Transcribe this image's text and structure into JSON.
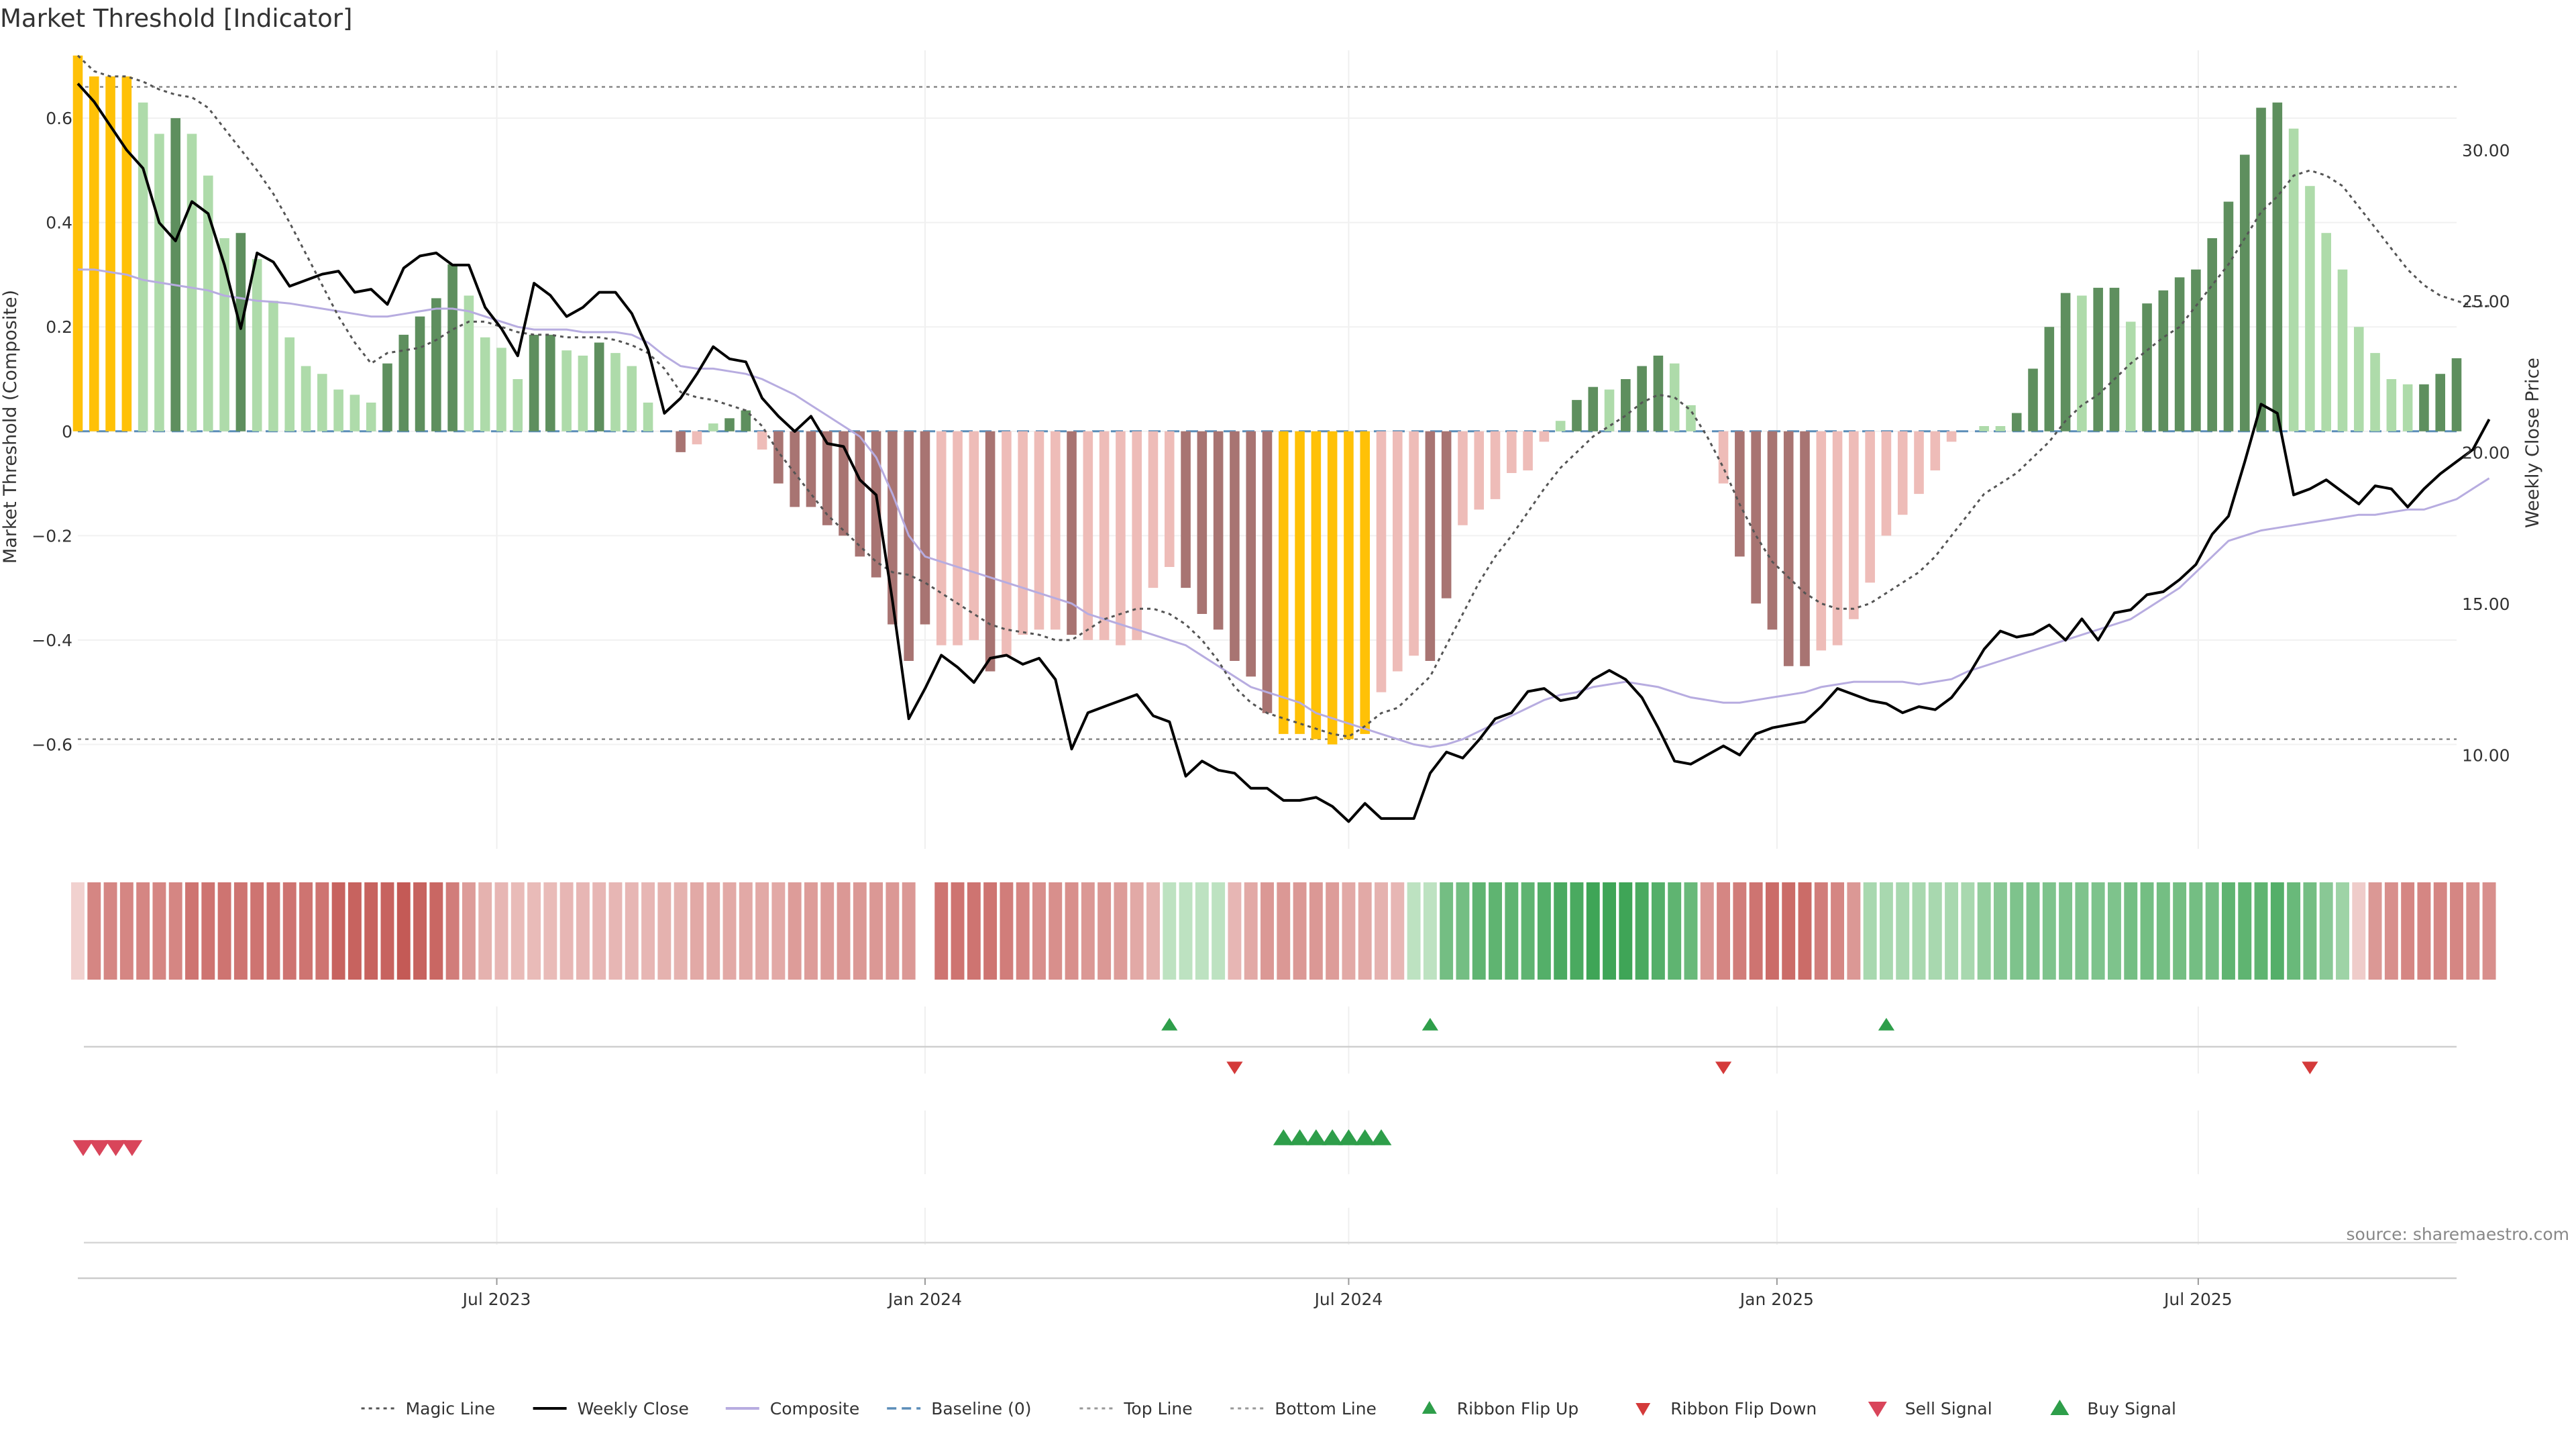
{
  "title": "Market Threshold [Indicator]",
  "source": "source: sharemaestro.com",
  "axes": {
    "y_left_label": "Market Threshold (Composite)",
    "y_right_label": "Weekly Close Price",
    "y_left_ticks": [
      "0.6",
      "0.4",
      "0.2",
      "0",
      "−0.2",
      "−0.4",
      "−0.6"
    ],
    "y_right_ticks": [
      "30.00",
      "25.00",
      "20.00",
      "15.00",
      "10.00"
    ],
    "x_ticks": [
      "Jul 2023",
      "Jan 2024",
      "Jul 2024",
      "Jan 2025",
      "Jul 2025"
    ]
  },
  "legend": [
    {
      "label": "Magic Line",
      "kind": "dotted-dark"
    },
    {
      "label": "Weekly Close",
      "kind": "solid-black"
    },
    {
      "label": "Composite",
      "kind": "solid-lavender"
    },
    {
      "label": "Baseline (0)",
      "kind": "dashed-blue"
    },
    {
      "label": "Top Line",
      "kind": "dotted-grey"
    },
    {
      "label": "Bottom Line",
      "kind": "dotted-grey"
    },
    {
      "label": "Ribbon Flip Up",
      "kind": "tri-up-small"
    },
    {
      "label": "Ribbon Flip Down",
      "kind": "tri-down-small"
    },
    {
      "label": "Sell Signal",
      "kind": "tri-down-large"
    },
    {
      "label": "Buy Signal",
      "kind": "tri-up-large"
    }
  ],
  "colors": {
    "extreme": "#FFC107",
    "pos_strong": "#5E8F5E",
    "pos_light": "#AEDBAA",
    "neg_strong": "#A87472",
    "neg_light": "#EEBCB8",
    "weekly_close": "#000000",
    "composite": "#B7ACE0",
    "magic": "#555555",
    "baseline": "#5B8DB8",
    "flip_up": "#2E9E4A",
    "flip_down": "#D43A3A",
    "sell": "#D9455A",
    "buy": "#2E9E4A"
  },
  "chart_data": {
    "type": "bar",
    "start_date": "2023-01-02",
    "interval": "weekly",
    "y_left_range": [
      -0.8,
      0.73
    ],
    "y_right_range": [
      6.9,
      33.3
    ],
    "top_line": 0.66,
    "bottom_line": -0.59,
    "baseline": 0,
    "bars": [
      [
        0.72,
        "E"
      ],
      [
        0.68,
        "E"
      ],
      [
        0.68,
        "E"
      ],
      [
        0.68,
        "E"
      ],
      [
        0.63,
        "L"
      ],
      [
        0.57,
        "L"
      ],
      [
        0.6,
        "S"
      ],
      [
        0.57,
        "L"
      ],
      [
        0.49,
        "L"
      ],
      [
        0.37,
        "L"
      ],
      [
        0.38,
        "S"
      ],
      [
        0.33,
        "L"
      ],
      [
        0.25,
        "L"
      ],
      [
        0.18,
        "L"
      ],
      [
        0.125,
        "L"
      ],
      [
        0.11,
        "L"
      ],
      [
        0.08,
        "L"
      ],
      [
        0.07,
        "L"
      ],
      [
        0.055,
        "L"
      ],
      [
        0.13,
        "S"
      ],
      [
        0.185,
        "S"
      ],
      [
        0.22,
        "S"
      ],
      [
        0.255,
        "S"
      ],
      [
        0.32,
        "S"
      ],
      [
        0.26,
        "L"
      ],
      [
        0.18,
        "L"
      ],
      [
        0.16,
        "L"
      ],
      [
        0.1,
        "L"
      ],
      [
        0.185,
        "S"
      ],
      [
        0.185,
        "S"
      ],
      [
        0.155,
        "L"
      ],
      [
        0.145,
        "L"
      ],
      [
        0.17,
        "S"
      ],
      [
        0.15,
        "L"
      ],
      [
        0.125,
        "L"
      ],
      [
        0.055,
        "L"
      ],
      [
        0,
        "L"
      ],
      [
        -0.04,
        "S"
      ],
      [
        -0.025,
        "L"
      ],
      [
        0.015,
        "L"
      ],
      [
        0.025,
        "S"
      ],
      [
        0.04,
        "S"
      ],
      [
        -0.035,
        "L"
      ],
      [
        -0.1,
        "S"
      ],
      [
        -0.145,
        "S"
      ],
      [
        -0.145,
        "S"
      ],
      [
        -0.18,
        "S"
      ],
      [
        -0.2,
        "S"
      ],
      [
        -0.24,
        "S"
      ],
      [
        -0.28,
        "S"
      ],
      [
        -0.37,
        "S"
      ],
      [
        -0.44,
        "S"
      ],
      [
        -0.37,
        "S"
      ],
      [
        -0.41,
        "L"
      ],
      [
        -0.41,
        "L"
      ],
      [
        -0.4,
        "L"
      ],
      [
        -0.46,
        "S"
      ],
      [
        -0.43,
        "L"
      ],
      [
        -0.39,
        "L"
      ],
      [
        -0.38,
        "L"
      ],
      [
        -0.38,
        "L"
      ],
      [
        -0.39,
        "S"
      ],
      [
        -0.4,
        "L"
      ],
      [
        -0.4,
        "L"
      ],
      [
        -0.41,
        "L"
      ],
      [
        -0.4,
        "L"
      ],
      [
        -0.3,
        "L"
      ],
      [
        -0.26,
        "L"
      ],
      [
        -0.3,
        "S"
      ],
      [
        -0.35,
        "S"
      ],
      [
        -0.38,
        "S"
      ],
      [
        -0.44,
        "S"
      ],
      [
        -0.47,
        "S"
      ],
      [
        -0.54,
        "S"
      ],
      [
        -0.58,
        "E"
      ],
      [
        -0.58,
        "E"
      ],
      [
        -0.59,
        "E"
      ],
      [
        -0.6,
        "E"
      ],
      [
        -0.59,
        "E"
      ],
      [
        -0.58,
        "E"
      ],
      [
        -0.5,
        "L"
      ],
      [
        -0.46,
        "L"
      ],
      [
        -0.43,
        "L"
      ],
      [
        -0.44,
        "S"
      ],
      [
        -0.32,
        "S"
      ],
      [
        -0.18,
        "L"
      ],
      [
        -0.15,
        "L"
      ],
      [
        -0.13,
        "L"
      ],
      [
        -0.08,
        "L"
      ],
      [
        -0.075,
        "L"
      ],
      [
        -0.02,
        "L"
      ],
      [
        0.02,
        "L"
      ],
      [
        0.06,
        "S"
      ],
      [
        0.085,
        "S"
      ],
      [
        0.08,
        "L"
      ],
      [
        0.1,
        "S"
      ],
      [
        0.125,
        "S"
      ],
      [
        0.145,
        "S"
      ],
      [
        0.13,
        "L"
      ],
      [
        0.05,
        "L"
      ],
      [
        0,
        "L"
      ],
      [
        -0.1,
        "L"
      ],
      [
        -0.24,
        "S"
      ],
      [
        -0.33,
        "S"
      ],
      [
        -0.38,
        "S"
      ],
      [
        -0.45,
        "S"
      ],
      [
        -0.45,
        "S"
      ],
      [
        -0.42,
        "L"
      ],
      [
        -0.41,
        "L"
      ],
      [
        -0.36,
        "L"
      ],
      [
        -0.29,
        "L"
      ],
      [
        -0.2,
        "L"
      ],
      [
        -0.16,
        "L"
      ],
      [
        -0.12,
        "L"
      ],
      [
        -0.075,
        "L"
      ],
      [
        -0.02,
        "L"
      ],
      [
        0,
        "L"
      ],
      [
        0.01,
        "L"
      ],
      [
        0.01,
        "L"
      ],
      [
        0.035,
        "S"
      ],
      [
        0.12,
        "S"
      ],
      [
        0.2,
        "S"
      ],
      [
        0.265,
        "S"
      ],
      [
        0.26,
        "L"
      ],
      [
        0.275,
        "S"
      ],
      [
        0.275,
        "S"
      ],
      [
        0.21,
        "L"
      ],
      [
        0.245,
        "S"
      ],
      [
        0.27,
        "S"
      ],
      [
        0.295,
        "S"
      ],
      [
        0.31,
        "S"
      ],
      [
        0.37,
        "S"
      ],
      [
        0.44,
        "S"
      ],
      [
        0.53,
        "S"
      ],
      [
        0.62,
        "S"
      ],
      [
        0.63,
        "S"
      ],
      [
        0.58,
        "L"
      ],
      [
        0.47,
        "L"
      ],
      [
        0.38,
        "L"
      ],
      [
        0.31,
        "L"
      ],
      [
        0.2,
        "L"
      ],
      [
        0.15,
        "L"
      ],
      [
        0.1,
        "L"
      ],
      [
        0.09,
        "L"
      ],
      [
        0.09,
        "S"
      ],
      [
        0.11,
        "S"
      ],
      [
        0.14,
        "S"
      ]
    ],
    "weekly_close": [
      32.2,
      31.6,
      30.8,
      30.0,
      29.4,
      27.6,
      27.0,
      28.3,
      27.9,
      26.2,
      24.1,
      26.6,
      26.3,
      25.5,
      25.7,
      25.9,
      26.0,
      25.3,
      25.4,
      24.9,
      26.1,
      26.5,
      26.6,
      26.2,
      26.2,
      24.8,
      24.1,
      23.2,
      25.6,
      25.2,
      24.5,
      24.8,
      25.3,
      25.3,
      24.6,
      23.4,
      21.3,
      21.8,
      22.6,
      23.5,
      23.1,
      23.0,
      21.8,
      21.2,
      20.7,
      21.2,
      20.3,
      20.2,
      19.1,
      18.6,
      15.1,
      11.2,
      12.2,
      13.3,
      12.9,
      12.4,
      13.2,
      13.3,
      13.0,
      13.2,
      12.5,
      10.2,
      11.4,
      11.6,
      11.8,
      12.0,
      11.3,
      11.1,
      9.3,
      9.8,
      9.5,
      9.4,
      8.9,
      8.9,
      8.5,
      8.5,
      8.6,
      8.3,
      7.8,
      8.4,
      7.9,
      7.9,
      7.9,
      9.4,
      10.1,
      9.9,
      10.5,
      11.2,
      11.4,
      12.1,
      12.2,
      11.8,
      11.9,
      12.5,
      12.8,
      12.5,
      11.9,
      10.9,
      9.8,
      9.7,
      10.0,
      10.3,
      10.0,
      10.7,
      10.9,
      11.0,
      11.1,
      11.6,
      12.2,
      12.0,
      11.8,
      11.7,
      11.4,
      11.6,
      11.5,
      11.9,
      12.6,
      13.5,
      14.1,
      13.9,
      14.0,
      14.3,
      13.8,
      14.5,
      13.8,
      14.7,
      14.8,
      15.3,
      15.4,
      15.8,
      16.3,
      17.3,
      17.9,
      19.7,
      21.6,
      21.3,
      18.6,
      18.8,
      19.1,
      18.7,
      18.3,
      18.9,
      18.8,
      18.2,
      18.8,
      19.3,
      19.7,
      20.1,
      21.1
    ],
    "composite": [
      0.31,
      0.31,
      0.305,
      0.3,
      0.29,
      0.285,
      0.28,
      0.275,
      0.27,
      0.26,
      0.255,
      0.25,
      0.248,
      0.245,
      0.24,
      0.235,
      0.23,
      0.225,
      0.22,
      0.22,
      0.225,
      0.23,
      0.235,
      0.235,
      0.23,
      0.22,
      0.21,
      0.2,
      0.195,
      0.195,
      0.195,
      0.19,
      0.19,
      0.19,
      0.185,
      0.17,
      0.145,
      0.125,
      0.12,
      0.12,
      0.115,
      0.11,
      0.1,
      0.085,
      0.07,
      0.05,
      0.03,
      0.01,
      -0.01,
      -0.05,
      -0.12,
      -0.2,
      -0.24,
      -0.25,
      -0.26,
      -0.27,
      -0.28,
      -0.29,
      -0.3,
      -0.31,
      -0.32,
      -0.33,
      -0.35,
      -0.36,
      -0.37,
      -0.38,
      -0.39,
      -0.4,
      -0.41,
      -0.43,
      -0.45,
      -0.47,
      -0.49,
      -0.5,
      -0.51,
      -0.52,
      -0.54,
      -0.55,
      -0.56,
      -0.57,
      -0.58,
      -0.59,
      -0.6,
      -0.605,
      -0.6,
      -0.59,
      -0.575,
      -0.56,
      -0.545,
      -0.53,
      -0.515,
      -0.505,
      -0.5,
      -0.49,
      -0.485,
      -0.48,
      -0.485,
      -0.49,
      -0.5,
      -0.51,
      -0.515,
      -0.52,
      -0.52,
      -0.515,
      -0.51,
      -0.505,
      -0.5,
      -0.49,
      -0.485,
      -0.48,
      -0.48,
      -0.48,
      -0.48,
      -0.485,
      -0.48,
      -0.475,
      -0.46,
      -0.45,
      -0.44,
      -0.43,
      -0.42,
      -0.41,
      -0.4,
      -0.39,
      -0.38,
      -0.37,
      -0.36,
      -0.34,
      -0.32,
      -0.3,
      -0.27,
      -0.24,
      -0.21,
      -0.2,
      -0.19,
      -0.185,
      -0.18,
      -0.175,
      -0.17,
      -0.165,
      -0.16,
      -0.16,
      -0.155,
      -0.15,
      -0.15,
      -0.14,
      -0.13,
      -0.11,
      -0.09
    ],
    "magic_line": [
      0.72,
      0.69,
      0.68,
      0.68,
      0.67,
      0.655,
      0.645,
      0.64,
      0.62,
      0.58,
      0.54,
      0.5,
      0.455,
      0.4,
      0.34,
      0.28,
      0.22,
      0.17,
      0.13,
      0.15,
      0.155,
      0.16,
      0.175,
      0.195,
      0.21,
      0.21,
      0.2,
      0.19,
      0.185,
      0.185,
      0.18,
      0.18,
      0.18,
      0.175,
      0.165,
      0.15,
      0.12,
      0.075,
      0.065,
      0.06,
      0.05,
      0.04,
      0.01,
      -0.04,
      -0.08,
      -0.12,
      -0.16,
      -0.19,
      -0.22,
      -0.25,
      -0.27,
      -0.275,
      -0.29,
      -0.31,
      -0.33,
      -0.35,
      -0.37,
      -0.38,
      -0.385,
      -0.39,
      -0.4,
      -0.4,
      -0.38,
      -0.36,
      -0.35,
      -0.34,
      -0.34,
      -0.35,
      -0.37,
      -0.4,
      -0.44,
      -0.49,
      -0.52,
      -0.54,
      -0.55,
      -0.56,
      -0.57,
      -0.58,
      -0.585,
      -0.565,
      -0.54,
      -0.53,
      -0.5,
      -0.47,
      -0.41,
      -0.35,
      -0.29,
      -0.24,
      -0.2,
      -0.155,
      -0.11,
      -0.07,
      -0.04,
      -0.01,
      0.01,
      0.03,
      0.055,
      0.07,
      0.065,
      0.04,
      -0.01,
      -0.07,
      -0.14,
      -0.2,
      -0.25,
      -0.28,
      -0.31,
      -0.33,
      -0.34,
      -0.34,
      -0.33,
      -0.31,
      -0.29,
      -0.27,
      -0.24,
      -0.2,
      -0.16,
      -0.12,
      -0.1,
      -0.08,
      -0.05,
      -0.02,
      0.02,
      0.05,
      0.07,
      0.1,
      0.13,
      0.155,
      0.18,
      0.2,
      0.24,
      0.28,
      0.32,
      0.37,
      0.42,
      0.45,
      0.49,
      0.5,
      0.49,
      0.47,
      0.43,
      0.39,
      0.35,
      0.31,
      0.28,
      0.26,
      0.25,
      0.24,
      0.24
    ],
    "ribbon": [
      -0.03,
      -0.2,
      -0.2,
      -0.2,
      -0.2,
      -0.2,
      -0.2,
      -0.24,
      -0.24,
      -0.24,
      -0.24,
      -0.24,
      -0.24,
      -0.24,
      -0.24,
      -0.24,
      -0.28,
      -0.28,
      -0.28,
      -0.28,
      -0.3,
      -0.28,
      -0.27,
      -0.22,
      -0.15,
      -0.1,
      -0.09,
      -0.08,
      -0.08,
      -0.08,
      -0.09,
      -0.09,
      -0.09,
      -0.09,
      -0.09,
      -0.09,
      -0.1,
      -0.1,
      -0.12,
      -0.12,
      -0.12,
      -0.12,
      -0.12,
      -0.12,
      -0.15,
      -0.15,
      -0.15,
      -0.16,
      -0.16,
      -0.16,
      -0.16,
      -0.16,
      null,
      -0.24,
      -0.24,
      -0.24,
      -0.24,
      -0.22,
      -0.2,
      -0.18,
      -0.18,
      -0.18,
      -0.16,
      -0.16,
      -0.15,
      -0.12,
      -0.1,
      0.06,
      0.06,
      0.06,
      0.06,
      -0.09,
      -0.12,
      -0.16,
      -0.16,
      -0.16,
      -0.16,
      -0.15,
      -0.12,
      -0.12,
      -0.1,
      -0.09,
      0.06,
      0.06,
      0.2,
      0.2,
      0.24,
      0.24,
      0.24,
      0.24,
      0.26,
      0.28,
      0.28,
      0.3,
      0.3,
      0.3,
      0.28,
      0.26,
      0.24,
      0.22,
      -0.16,
      -0.2,
      -0.22,
      -0.24,
      -0.26,
      -0.26,
      -0.26,
      -0.22,
      -0.2,
      -0.16,
      0.1,
      0.1,
      0.1,
      0.1,
      0.1,
      0.1,
      0.1,
      0.14,
      0.16,
      0.18,
      0.18,
      0.18,
      0.18,
      0.18,
      0.18,
      0.18,
      0.2,
      0.2,
      0.2,
      0.2,
      0.2,
      0.2,
      0.24,
      0.24,
      0.24,
      0.26,
      0.22,
      0.2,
      0.16,
      0.12,
      -0.04,
      -0.16,
      -0.18,
      -0.2,
      -0.2,
      -0.2,
      -0.2,
      -0.18,
      -0.18
    ],
    "ribbon_flip_up_weeks": [
      67,
      83,
      111
    ],
    "ribbon_flip_down_weeks": [
      71,
      101,
      137
    ],
    "sell_signal_weeks": [
      0,
      1,
      2,
      3
    ],
    "buy_signal_weeks": [
      74,
      75,
      76,
      77,
      78,
      79,
      80
    ]
  }
}
